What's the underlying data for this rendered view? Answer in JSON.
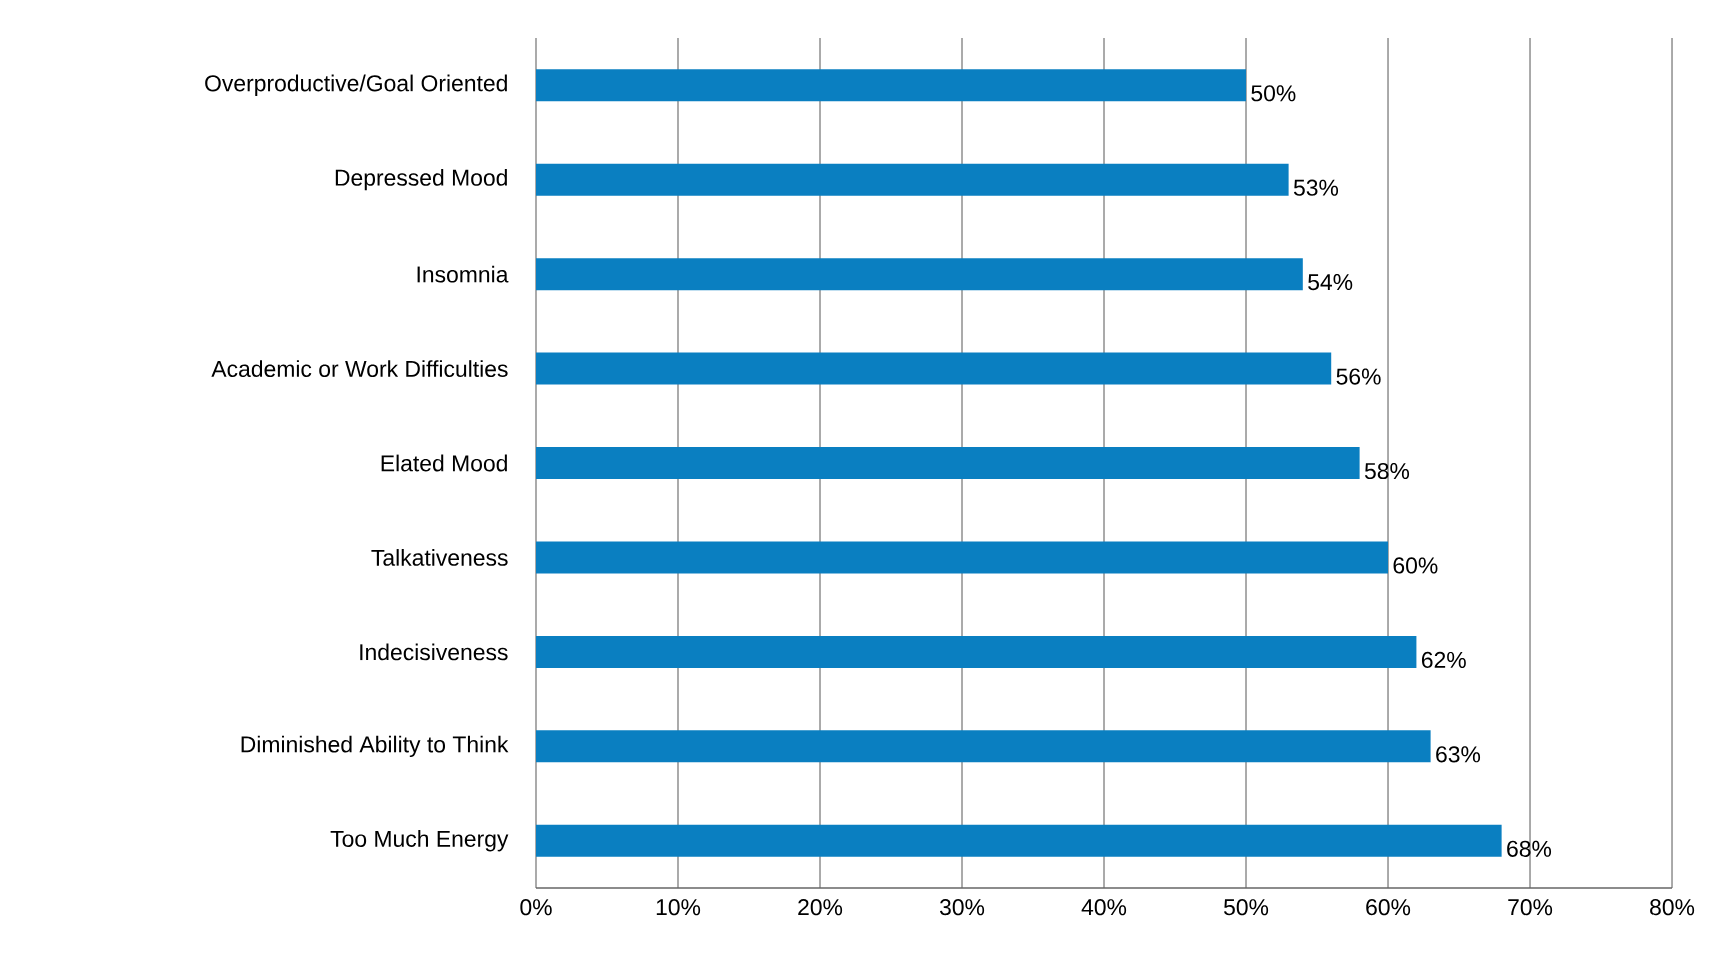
{
  "chart_data": {
    "type": "bar",
    "orientation": "horizontal",
    "categories": [
      "Overproductive/Goal Oriented",
      "Depressed Mood",
      "Insomnia",
      "Academic or Work Difficulties",
      "Elated Mood",
      "Talkativeness",
      "Indecisiveness",
      "Diminished Ability to Think",
      "Too Much Energy"
    ],
    "values": [
      50,
      53,
      54,
      56,
      58,
      60,
      62,
      63,
      68
    ],
    "value_labels": [
      "50%",
      "53%",
      "54%",
      "56%",
      "58%",
      "60%",
      "62%",
      "63%",
      "68%"
    ],
    "color": "#0a7fc1",
    "xlim": [
      0,
      80
    ],
    "xticks": [
      {
        "value": 0,
        "label": "0%"
      },
      {
        "value": 10,
        "label": "10%"
      },
      {
        "value": 20,
        "label": "20%"
      },
      {
        "value": 30,
        "label": "30%"
      },
      {
        "value": 40,
        "label": "40%"
      },
      {
        "value": 50,
        "label": "50%"
      },
      {
        "value": 60,
        "label": "60%"
      },
      {
        "value": 70,
        "label": "70%"
      },
      {
        "value": 80,
        "label": "80%"
      }
    ],
    "grid": "x"
  }
}
